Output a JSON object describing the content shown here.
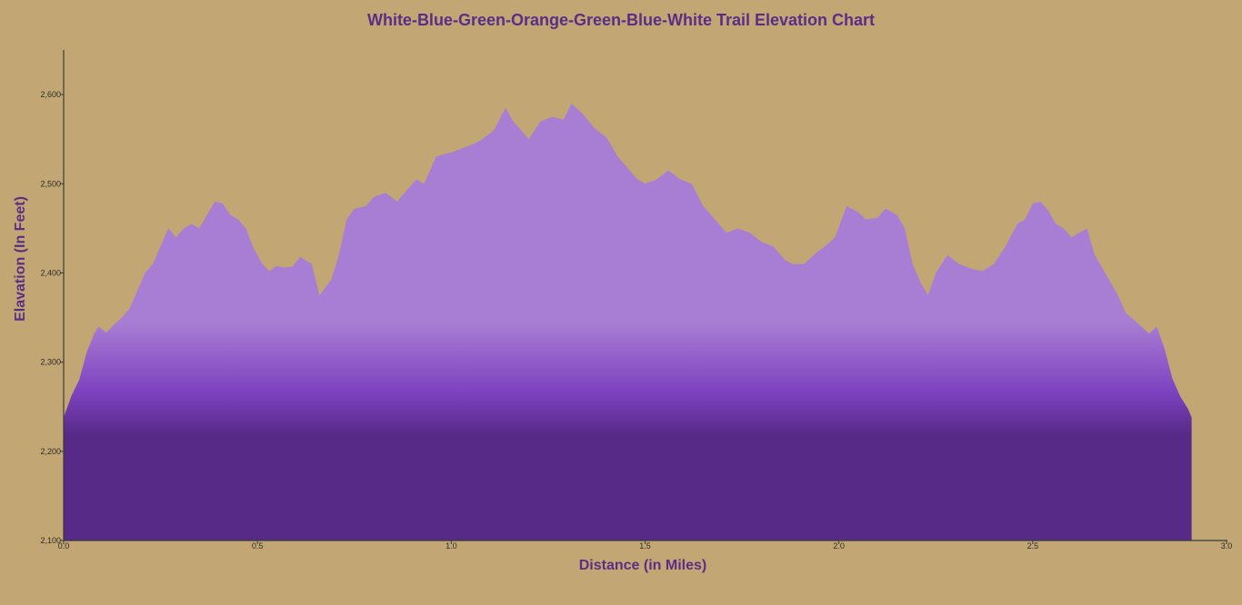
{
  "chart_data": {
    "type": "area",
    "title": "White-Blue-Green-Orange-Green-Blue-White Trail Elevation Chart",
    "xlabel": "Distance (in Miles)",
    "ylabel": "Elavation (In Feet)",
    "xlim": [
      0.0,
      3.0
    ],
    "ylim": [
      2100,
      2650
    ],
    "x_ticks": [
      "0.0",
      "0.5",
      "1.0",
      "1.5",
      "2.0",
      "2.5",
      "3.0"
    ],
    "x_tick_values": [
      0.0,
      0.5,
      1.0,
      1.5,
      2.0,
      2.5,
      3.0
    ],
    "y_ticks": [
      "2,100",
      "2,200",
      "2,300",
      "2,400",
      "2,500",
      "2,600"
    ],
    "y_tick_values": [
      2100,
      2200,
      2300,
      2400,
      2500,
      2600
    ],
    "grid": false,
    "fill_colors": {
      "top": "#A87ED4",
      "middle": "#7E42C0",
      "bottom": "#562A86"
    },
    "series": [
      {
        "x": [
          0.0,
          0.02,
          0.04,
          0.06,
          0.08,
          0.09,
          0.11,
          0.13,
          0.15,
          0.17,
          0.19,
          0.21,
          0.23,
          0.25,
          0.27,
          0.29,
          0.31,
          0.33,
          0.35,
          0.37,
          0.39,
          0.41,
          0.43,
          0.45,
          0.47,
          0.49,
          0.51,
          0.53,
          0.55,
          0.57,
          0.59,
          0.61,
          0.64,
          0.66,
          0.69,
          0.71,
          0.73,
          0.75,
          0.78,
          0.8,
          0.83,
          0.86,
          0.89,
          0.91,
          0.93,
          0.96,
          0.98,
          1.0,
          1.03,
          1.06,
          1.08,
          1.11,
          1.14,
          1.16,
          1.18,
          1.2,
          1.23,
          1.26,
          1.29,
          1.31,
          1.34,
          1.37,
          1.4,
          1.43,
          1.45,
          1.48,
          1.5,
          1.53,
          1.56,
          1.59,
          1.62,
          1.65,
          1.68,
          1.71,
          1.74,
          1.77,
          1.8,
          1.83,
          1.86,
          1.88,
          1.91,
          1.94,
          1.97,
          1.99,
          2.02,
          2.05,
          2.07,
          2.1,
          2.12,
          2.15,
          2.17,
          2.19,
          2.21,
          2.23,
          2.25,
          2.28,
          2.31,
          2.34,
          2.37,
          2.4,
          2.43,
          2.46,
          2.48,
          2.5,
          2.52,
          2.54,
          2.56,
          2.58,
          2.6,
          2.62,
          2.64,
          2.66,
          2.68,
          2.7,
          2.72,
          2.74,
          2.76,
          2.78,
          2.8,
          2.82,
          2.84,
          2.86,
          2.88,
          2.9,
          2.91
        ],
        "y": [
          2238,
          2262,
          2280,
          2312,
          2333,
          2340,
          2333,
          2342,
          2350,
          2360,
          2380,
          2400,
          2410,
          2430,
          2450,
          2440,
          2450,
          2455,
          2450,
          2465,
          2480,
          2478,
          2465,
          2460,
          2450,
          2428,
          2412,
          2402,
          2408,
          2406,
          2407,
          2418,
          2410,
          2375,
          2392,
          2420,
          2460,
          2472,
          2475,
          2485,
          2490,
          2480,
          2495,
          2505,
          2500,
          2530,
          2533,
          2535,
          2540,
          2545,
          2550,
          2560,
          2585,
          2570,
          2560,
          2550,
          2570,
          2575,
          2572,
          2590,
          2578,
          2562,
          2552,
          2530,
          2520,
          2505,
          2500,
          2505,
          2515,
          2505,
          2500,
          2475,
          2460,
          2445,
          2450,
          2445,
          2435,
          2430,
          2415,
          2410,
          2410,
          2422,
          2432,
          2440,
          2475,
          2468,
          2460,
          2462,
          2472,
          2465,
          2450,
          2410,
          2390,
          2375,
          2400,
          2420,
          2410,
          2405,
          2402,
          2410,
          2430,
          2455,
          2460,
          2478,
          2480,
          2470,
          2455,
          2450,
          2440,
          2445,
          2450,
          2420,
          2405,
          2390,
          2375,
          2355,
          2348,
          2340,
          2332,
          2340,
          2315,
          2282,
          2262,
          2248,
          2238
        ]
      }
    ]
  }
}
